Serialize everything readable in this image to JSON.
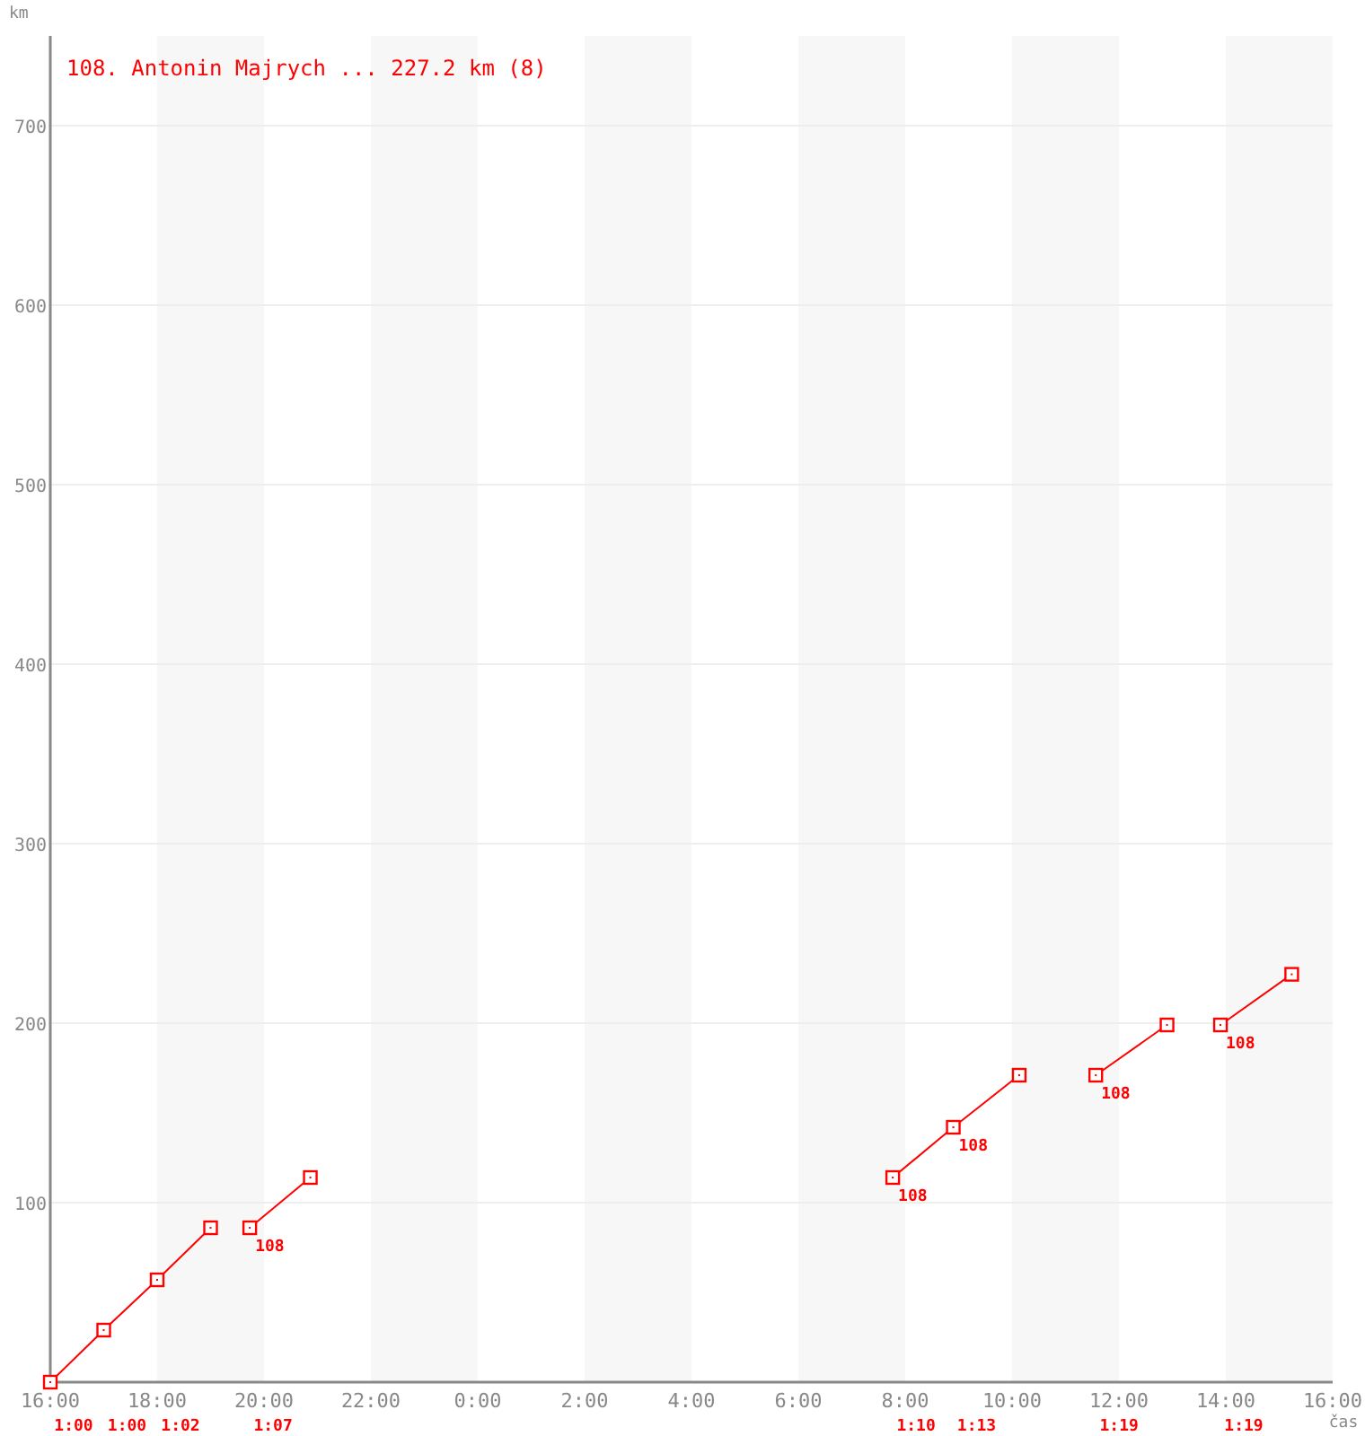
{
  "chart_data": {
    "type": "line",
    "title": "108. Antonin Majrych ... 227.2 km (8)",
    "xlabel": "čas",
    "ylabel": "km",
    "marker": "square",
    "grid": "y",
    "xlim": [
      "2000-01-01T16:00",
      "2000-01-02T16:00"
    ],
    "ylim": [
      0,
      750
    ],
    "xticks": [
      {
        "value": "2000-01-01T16:00",
        "label": "16:00"
      },
      {
        "value": "2000-01-01T18:00",
        "label": "18:00"
      },
      {
        "value": "2000-01-01T20:00",
        "label": "20:00"
      },
      {
        "value": "2000-01-01T22:00",
        "label": "22:00"
      },
      {
        "value": "2000-01-02T00:00",
        "label": "0:00"
      },
      {
        "value": "2000-01-02T02:00",
        "label": "2:00"
      },
      {
        "value": "2000-01-02T04:00",
        "label": "4:00"
      },
      {
        "value": "2000-01-02T06:00",
        "label": "6:00"
      },
      {
        "value": "2000-01-02T08:00",
        "label": "8:00"
      },
      {
        "value": "2000-01-02T10:00",
        "label": "10:00"
      },
      {
        "value": "2000-01-02T12:00",
        "label": "12:00"
      },
      {
        "value": "2000-01-02T14:00",
        "label": "14:00"
      },
      {
        "value": "2000-01-02T16:00",
        "label": "16:00"
      }
    ],
    "yticks": [
      100,
      200,
      300,
      400,
      500,
      600,
      700
    ],
    "series": [
      {
        "color": "#ff0000",
        "x": [
          "2000-01-01T16:00",
          "2000-01-01T17:00",
          "2000-01-01T18:00",
          "2000-01-01T19:00"
        ],
        "values": [
          0,
          29,
          57,
          86
        ]
      },
      {
        "color": "#ff0000",
        "x": [
          "2000-01-01T19:44",
          "2000-01-01T20:52"
        ],
        "values": [
          86,
          114
        ]
      },
      {
        "color": "#ff0000",
        "x": [
          "2000-01-02T07:46",
          "2000-01-02T08:54",
          "2000-01-02T10:08"
        ],
        "values": [
          114,
          142,
          171
        ]
      },
      {
        "color": "#ff0000",
        "x": [
          "2000-01-02T11:34",
          "2000-01-02T12:54"
        ],
        "values": [
          171,
          199
        ]
      },
      {
        "color": "#ff0000",
        "x": [
          "2000-01-02T13:54",
          "2000-01-02T15:14"
        ],
        "values": [
          199,
          227.2
        ]
      }
    ],
    "bands": [
      {
        "axis": "x",
        "from": "2000-01-01T18:00",
        "to": "2000-01-01T20:00",
        "color": "#f7f7f7"
      },
      {
        "axis": "x",
        "from": "2000-01-01T22:00",
        "to": "2000-01-02T00:00",
        "color": "#f7f7f7"
      },
      {
        "axis": "x",
        "from": "2000-01-02T02:00",
        "to": "2000-01-02T04:00",
        "color": "#f7f7f7"
      },
      {
        "axis": "x",
        "from": "2000-01-02T06:00",
        "to": "2000-01-02T08:00",
        "color": "#f7f7f7"
      },
      {
        "axis": "x",
        "from": "2000-01-02T10:00",
        "to": "2000-01-02T12:00",
        "color": "#f7f7f7"
      },
      {
        "axis": "x",
        "from": "2000-01-02T14:00",
        "to": "2000-01-02T16:00",
        "color": "#f7f7f7"
      }
    ],
    "annotations": [
      {
        "text": "108",
        "x": "2000-01-01T19:44",
        "y": 86
      },
      {
        "text": "108",
        "x": "2000-01-02T07:46",
        "y": 114
      },
      {
        "text": "108",
        "x": "2000-01-02T08:54",
        "y": 142
      },
      {
        "text": "108",
        "x": "2000-01-02T11:34",
        "y": 171
      },
      {
        "text": "108",
        "x": "2000-01-02T13:54",
        "y": 199
      },
      "1:00",
      "1:00",
      "1:02",
      "1:07",
      "1:10",
      "1:13",
      "1:19",
      "1:19"
    ]
  }
}
